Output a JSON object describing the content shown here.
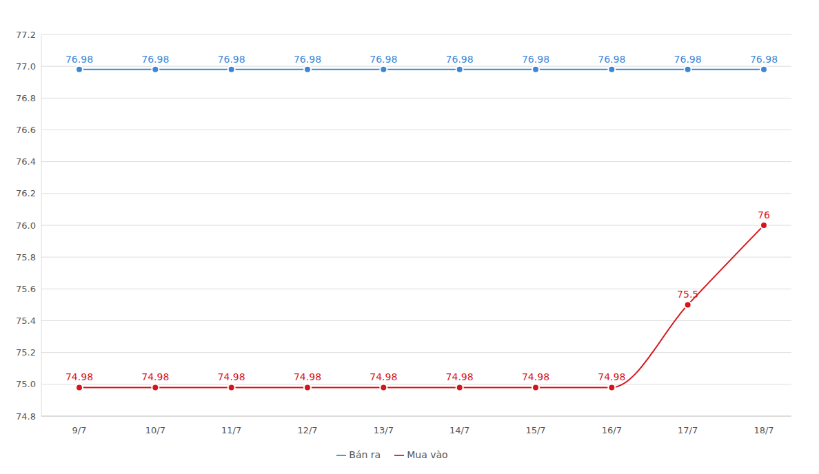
{
  "chart_data": {
    "type": "line",
    "categories": [
      "9/7",
      "10/7",
      "11/7",
      "12/7",
      "13/7",
      "14/7",
      "15/7",
      "16/7",
      "17/7",
      "18/7"
    ],
    "series": [
      {
        "name": "Mua vào",
        "color": "#d7141a",
        "marker": "circle",
        "values": [
          74.98,
          74.98,
          74.98,
          74.98,
          74.98,
          74.98,
          74.98,
          74.98,
          75.5,
          76
        ]
      },
      {
        "name": "Bán ra",
        "color": "#3a86d9",
        "marker": "circle",
        "values": [
          76.98,
          76.98,
          76.98,
          76.98,
          76.98,
          76.98,
          76.98,
          76.98,
          76.98,
          76.98
        ]
      }
    ],
    "ylim": [
      74.8,
      77.2
    ],
    "yticks": [
      74.8,
      {
        "value": 75,
        "label": "75.0"
      },
      75.2,
      75.4,
      75.6,
      75.8,
      {
        "value": 76,
        "label": "76.0"
      },
      76.2,
      76.4,
      76.6,
      76.8,
      {
        "value": 77,
        "label": "77.0"
      },
      77.2
    ],
    "grid": true,
    "data_labels": true,
    "legend": "bottom"
  }
}
